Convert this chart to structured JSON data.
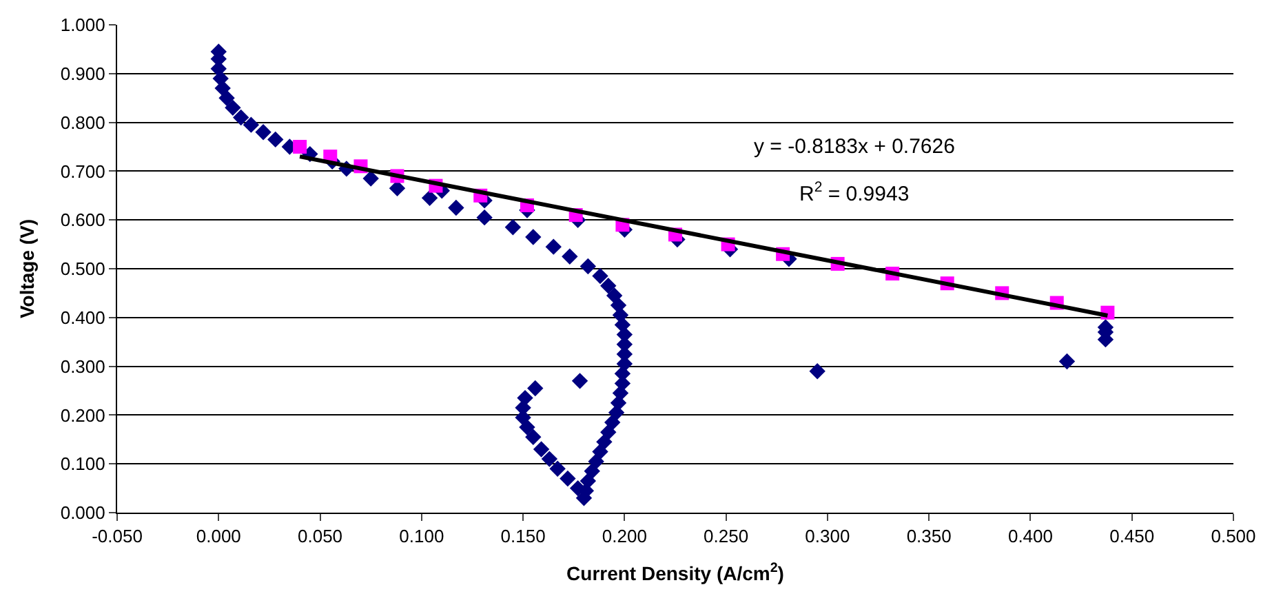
{
  "chart_data": {
    "type": "scatter",
    "xlabel": "Current Density (A/cm$^{2}$)",
    "ylabel": "Voltage (V)",
    "xlim": [
      -0.05,
      0.5
    ],
    "ylim": [
      0,
      1
    ],
    "xticks": [
      {
        "value": -0.05,
        "label": "-0.050"
      },
      {
        "value": 0,
        "label": "0.000"
      },
      {
        "value": 0.05,
        "label": "0.050"
      },
      {
        "value": 0.1,
        "label": "0.100"
      },
      {
        "value": 0.15,
        "label": "0.150"
      },
      {
        "value": 0.2,
        "label": "0.200"
      },
      {
        "value": 0.25,
        "label": "0.250"
      },
      {
        "value": 0.3,
        "label": "0.300"
      },
      {
        "value": 0.35,
        "label": "0.350"
      },
      {
        "value": 0.4,
        "label": "0.400"
      },
      {
        "value": 0.45,
        "label": "0.450"
      },
      {
        "value": 0.5,
        "label": "0.500"
      }
    ],
    "yticks": [
      {
        "value": 0,
        "label": "0.000"
      },
      {
        "value": 0.1,
        "label": "0.100"
      },
      {
        "value": 0.2,
        "label": "0.200"
      },
      {
        "value": 0.3,
        "label": "0.300"
      },
      {
        "value": 0.4,
        "label": "0.400"
      },
      {
        "value": 0.5,
        "label": "0.500"
      },
      {
        "value": 0.6,
        "label": "0.600"
      },
      {
        "value": 0.7,
        "label": "0.700"
      },
      {
        "value": 0.8,
        "label": "0.800"
      },
      {
        "value": 0.9,
        "label": "0.900"
      },
      {
        "value": 1,
        "label": "1.000"
      }
    ],
    "grid": "y",
    "series": [
      {
        "marker": "diamond",
        "color": "#000080",
        "x": [
          0,
          0,
          0,
          0.001,
          0.002,
          0.004,
          0.007,
          0.011,
          0.016,
          0.022,
          0.028,
          0.035,
          0.045,
          0.056,
          0.063,
          0.075,
          0.088,
          0.104,
          0.11,
          0.117,
          0.131,
          0.131,
          0.145,
          0.152,
          0.155,
          0.165,
          0.173,
          0.177,
          0.182,
          0.188,
          0.192,
          0.195,
          0.197,
          0.198,
          0.199,
          0.2,
          0.2,
          0.2,
          0.2,
          0.199,
          0.199,
          0.198,
          0.197,
          0.196,
          0.194,
          0.192,
          0.19,
          0.188,
          0.186,
          0.184,
          0.182,
          0.181,
          0.18,
          0.177,
          0.172,
          0.167,
          0.163,
          0.159,
          0.155,
          0.152,
          0.15,
          0.15,
          0.151,
          0.156,
          0.178,
          0.2,
          0.226,
          0.252,
          0.281,
          0.295,
          0.418,
          0.437,
          0.437,
          0.437
        ],
        "values": [
          0.945,
          0.93,
          0.91,
          0.89,
          0.87,
          0.85,
          0.83,
          0.81,
          0.795,
          0.78,
          0.765,
          0.75,
          0.735,
          0.72,
          0.705,
          0.685,
          0.665,
          0.645,
          0.66,
          0.625,
          0.64,
          0.605,
          0.585,
          0.62,
          0.565,
          0.545,
          0.525,
          0.6,
          0.505,
          0.485,
          0.465,
          0.445,
          0.425,
          0.405,
          0.385,
          0.365,
          0.345,
          0.325,
          0.305,
          0.285,
          0.265,
          0.245,
          0.225,
          0.205,
          0.185,
          0.165,
          0.145,
          0.125,
          0.105,
          0.085,
          0.065,
          0.045,
          0.03,
          0.05,
          0.07,
          0.09,
          0.11,
          0.13,
          0.155,
          0.175,
          0.195,
          0.215,
          0.235,
          0.255,
          0.27,
          0.58,
          0.56,
          0.54,
          0.52,
          0.29,
          0.31,
          0.38,
          0.37,
          0.355
        ]
      },
      {
        "marker": "square",
        "color": "#ff00ff",
        "x": [
          0.04,
          0.055,
          0.07,
          0.088,
          0.107,
          0.129,
          0.152,
          0.176,
          0.199,
          0.225,
          0.251,
          0.278,
          0.305,
          0.332,
          0.359,
          0.386,
          0.413,
          0.438
        ],
        "values": [
          0.75,
          0.73,
          0.71,
          0.69,
          0.67,
          0.65,
          0.63,
          0.61,
          0.59,
          0.57,
          0.55,
          0.53,
          0.51,
          0.49,
          0.47,
          0.45,
          0.43,
          0.41
        ]
      },
      {
        "type": "line",
        "marker": "none",
        "line_style": "solid",
        "color": "#000000",
        "x": [
          0.04,
          0.438
        ],
        "values": [
          0.73,
          0.404
        ]
      }
    ],
    "annotations": [
      "y = -0.8183x + 0.7626",
      "R$^{2}$ = 0.9943"
    ]
  }
}
